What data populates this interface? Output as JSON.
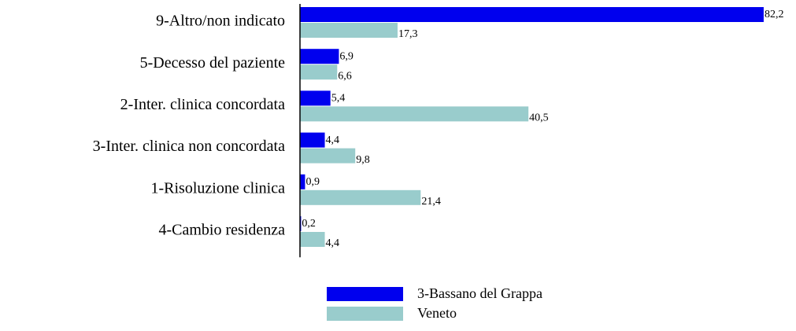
{
  "chart_data": {
    "type": "bar",
    "orientation": "horizontal",
    "categories": [
      "9-Altro/non indicato",
      "5-Decesso del paziente",
      "2-Inter. clinica concordata",
      "3-Inter. clinica non concordata",
      "1-Risoluzione clinica",
      "4-Cambio residenza"
    ],
    "series": [
      {
        "name": "3-Bassano del Grappa",
        "color": "#0000ee",
        "values": [
          82.2,
          6.9,
          5.4,
          4.4,
          0.9,
          0.2
        ],
        "value_labels": [
          "82,2",
          "6,9",
          "5,4",
          "4,4",
          "0,9",
          "0,2"
        ]
      },
      {
        "name": "Veneto",
        "color": "#99cccc",
        "values": [
          17.3,
          6.6,
          40.5,
          9.8,
          21.4,
          4.4
        ],
        "value_labels": [
          "17,3",
          "6,6",
          "40,5",
          "9,8",
          "21,4",
          "4,4"
        ]
      }
    ],
    "xlim": [
      0,
      85
    ]
  }
}
